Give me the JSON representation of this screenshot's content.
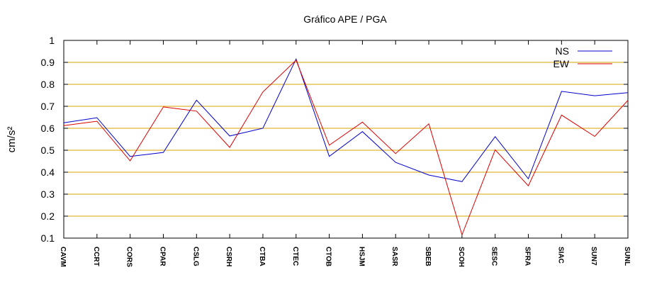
{
  "chart_data": {
    "type": "line",
    "title": "Gráfico  APE / PGA",
    "xlabel": "",
    "ylabel": "cm/s²",
    "ylim": [
      0.1,
      1.0
    ],
    "yticks": [
      "0.1",
      "0.2",
      "0.3",
      "0.4",
      "0.5",
      "0.6",
      "0.7",
      "0.8",
      "0.9",
      "1"
    ],
    "grid": "horizontal",
    "legend_position": "top-right",
    "categories": [
      "CAVM",
      "CCRT",
      "CORS",
      "CPAR",
      "CSLG",
      "CSRH",
      "CTBA",
      "CTEC",
      "CTOB",
      "HSJM",
      "SASR",
      "SBEB",
      "SCOH",
      "SESC",
      "SFRA",
      "SIAC",
      "SUN7",
      "SUNL"
    ],
    "series": [
      {
        "name": "NS",
        "color": "#0000cc",
        "values": [
          0.625,
          0.648,
          0.472,
          0.49,
          0.728,
          0.565,
          0.6,
          0.915,
          0.472,
          0.585,
          0.445,
          0.387,
          0.357,
          0.562,
          0.37,
          0.768,
          0.748,
          0.762
        ]
      },
      {
        "name": "EW",
        "color": "#dd0000",
        "values": [
          0.612,
          0.632,
          0.452,
          0.697,
          0.678,
          0.513,
          0.765,
          0.91,
          0.523,
          0.628,
          0.485,
          0.62,
          0.115,
          0.502,
          0.338,
          0.66,
          0.563,
          0.727
        ]
      }
    ]
  }
}
